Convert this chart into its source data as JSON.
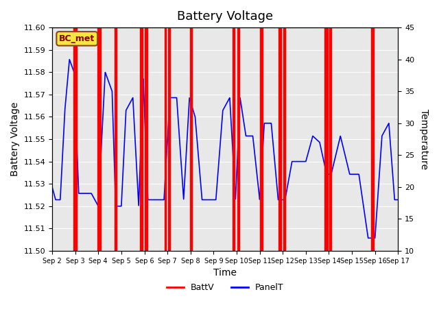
{
  "title": "Battery Voltage",
  "xlabel": "Time",
  "ylabel_left": "Battery Voltage",
  "ylabel_right": "Temperature",
  "ylim_left": [
    11.5,
    11.6
  ],
  "ylim_right": [
    10,
    45
  ],
  "yticks_left": [
    11.5,
    11.51,
    11.52,
    11.53,
    11.54,
    11.55,
    11.56,
    11.57,
    11.58,
    11.59,
    11.6
  ],
  "yticks_right": [
    10,
    15,
    20,
    25,
    30,
    35,
    40,
    45
  ],
  "xtick_labels": [
    "Sep 2",
    "Sep 3",
    "Sep 4",
    "Sep 5",
    "Sep 6",
    "Sep 7",
    "Sep 8",
    "Sep 9",
    "Sep 10",
    "Sep 11",
    "Sep 12",
    "Sep 13",
    "Sep 14",
    "Sep 15",
    "Sep 16",
    "Sep 17"
  ],
  "bg_color": "#e8e8e8",
  "annotation_text": "BC_met",
  "annotation_bg": "#f5e642",
  "annotation_border": "#8B4513",
  "red_line_color": "#ff0000",
  "blue_line_color": "#0000ff",
  "red_vline_pairs": [
    [
      0.93,
      1.07
    ],
    [
      1.95,
      2.1
    ],
    [
      2.72,
      2.8
    ],
    [
      3.82,
      3.92
    ],
    [
      4.02,
      4.12
    ],
    [
      4.87,
      4.95
    ],
    [
      5.02,
      5.12
    ],
    [
      5.98,
      6.08
    ],
    [
      7.82,
      7.92
    ],
    [
      8.02,
      8.12
    ],
    [
      9.02,
      9.12
    ],
    [
      9.82,
      9.92
    ],
    [
      10.02,
      10.12
    ],
    [
      11.82,
      11.95
    ],
    [
      12.02,
      12.12
    ],
    [
      13.82,
      13.95
    ]
  ],
  "blue_keypoints_x": [
    0.0,
    0.15,
    0.35,
    0.55,
    0.75,
    0.95,
    1.15,
    1.4,
    1.7,
    2.0,
    2.3,
    2.6,
    2.75,
    3.0,
    3.2,
    3.5,
    3.75,
    3.95,
    4.15,
    4.5,
    4.85,
    5.1,
    5.4,
    5.7,
    5.95,
    6.2,
    6.5,
    6.8,
    7.1,
    7.4,
    7.7,
    7.95,
    8.15,
    8.4,
    8.7,
    9.0,
    9.2,
    9.5,
    9.8,
    10.1,
    10.4,
    10.7,
    11.0,
    11.3,
    11.6,
    11.9,
    12.1,
    12.5,
    12.9,
    13.3,
    13.7,
    14.0,
    14.3,
    14.6,
    14.85,
    15.0
  ],
  "blue_keypoints_T": [
    20,
    18,
    18,
    32,
    40,
    38,
    19,
    19,
    19,
    17,
    38,
    35,
    17,
    17,
    32,
    34,
    17,
    37,
    18,
    18,
    18,
    34,
    34,
    18,
    34,
    31,
    18,
    18,
    18,
    32,
    34,
    18,
    34,
    28,
    28,
    18,
    30,
    30,
    18,
    18,
    24,
    24,
    24,
    28,
    27,
    22,
    22,
    28,
    22,
    22,
    12,
    12,
    28,
    30,
    18,
    18
  ]
}
